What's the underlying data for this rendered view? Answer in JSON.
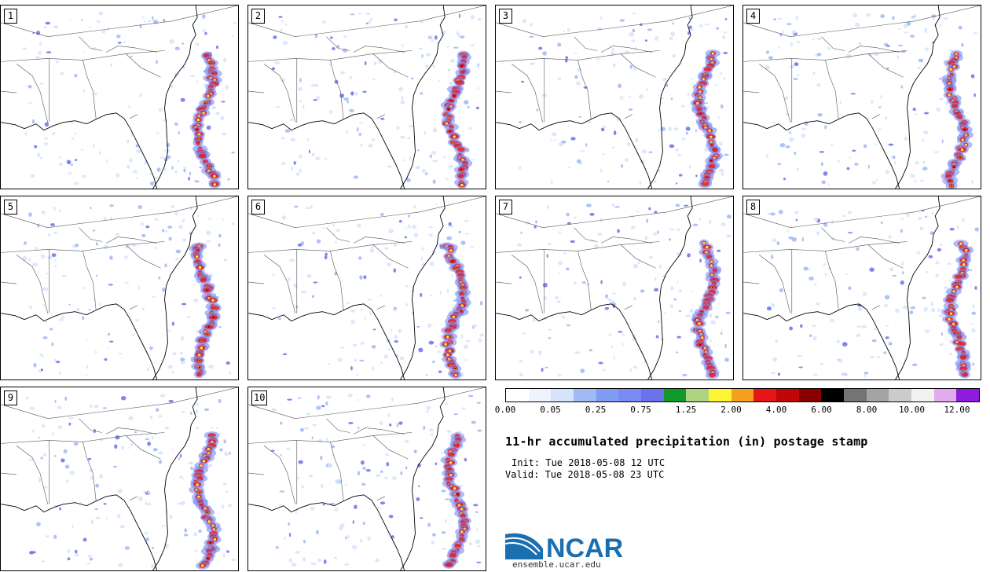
{
  "panels": [
    {
      "label": "1",
      "variant": 0
    },
    {
      "label": "2",
      "variant": 1
    },
    {
      "label": "3",
      "variant": 2
    },
    {
      "label": "4",
      "variant": 3
    },
    {
      "label": "5",
      "variant": 4
    },
    {
      "label": "6",
      "variant": 5
    },
    {
      "label": "7",
      "variant": 6
    },
    {
      "label": "8",
      "variant": 7
    },
    {
      "label": "9",
      "variant": 8
    },
    {
      "label": "10",
      "variant": 9
    }
  ],
  "colorbar": {
    "colors": [
      "#ffffff",
      "#eef4fd",
      "#d6e4fb",
      "#9fbaf5",
      "#7f9df3",
      "#7a8cf4",
      "#6b72ec",
      "#0f9a2a",
      "#aed47f",
      "#fff433",
      "#f5a11f",
      "#e61616",
      "#c00606",
      "#8a0000",
      "#000000",
      "#747474",
      "#a4a4a4",
      "#cbcbcb",
      "#f2f2f2",
      "#e3abef",
      "#8e1cdc"
    ],
    "tick_labels": [
      "0.00",
      "0.05",
      "0.25",
      "0.75",
      "1.25",
      "2.00",
      "4.00",
      "6.00",
      "8.00",
      "10.00",
      "12.00"
    ]
  },
  "title": "11-hr accumulated precipitation (in) postage stamp",
  "init_text": "Init: Tue 2018-05-08 12 UTC",
  "valid_text": "Valid: Tue 2018-05-08 23 UTC",
  "logo": {
    "text": "NCAR",
    "url": "ensemble.ucar.edu",
    "color": "#1a6fb0"
  }
}
